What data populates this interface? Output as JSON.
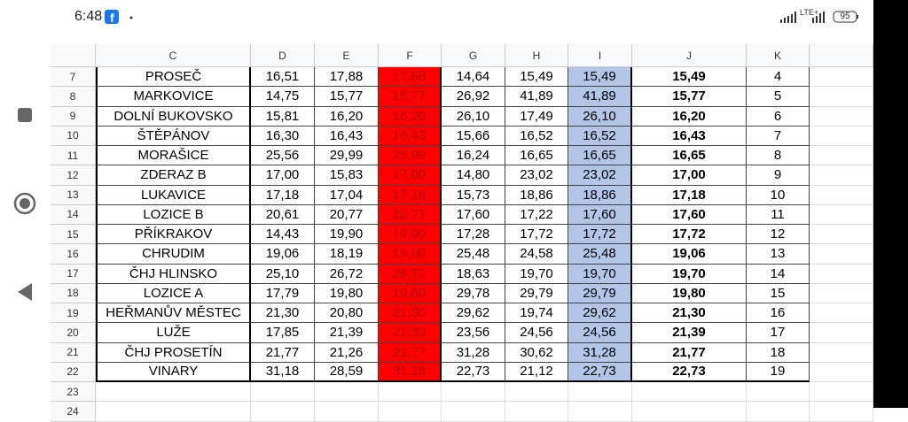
{
  "status_bar": {
    "time": "6:48",
    "network": "LTE+",
    "battery": "95"
  },
  "table": {
    "columns": [
      "C",
      "D",
      "E",
      "F",
      "G",
      "H",
      "I",
      "J",
      "K"
    ],
    "rows": [
      {
        "row": "7",
        "cells": [
          "PROSEČ",
          "16,51",
          "17,88",
          "17,88",
          "14,64",
          "15,49",
          "15,49",
          "15,49",
          "4"
        ]
      },
      {
        "row": "8",
        "cells": [
          "MARKOVICE",
          "14,75",
          "15,77",
          "15,77",
          "26,92",
          "41,89",
          "41,89",
          "15,77",
          "5"
        ]
      },
      {
        "row": "9",
        "cells": [
          "DOLNÍ BUKOVSKO",
          "15,81",
          "16,20",
          "16,20",
          "26,10",
          "17,49",
          "26,10",
          "16,20",
          "6"
        ]
      },
      {
        "row": "10",
        "cells": [
          "ŠTĚPÁNOV",
          "16,30",
          "16,43",
          "16,43",
          "15,66",
          "16,52",
          "16,52",
          "16,43",
          "7"
        ]
      },
      {
        "row": "11",
        "cells": [
          "MORAŠICE",
          "25,56",
          "29,99",
          "29,99",
          "16,24",
          "16,65",
          "16,65",
          "16,65",
          "8"
        ]
      },
      {
        "row": "12",
        "cells": [
          "ZDERAZ B",
          "17,00",
          "15,83",
          "17,00",
          "14,80",
          "23,02",
          "23,02",
          "17,00",
          "9"
        ]
      },
      {
        "row": "13",
        "cells": [
          "LUKAVICE",
          "17,18",
          "17,04",
          "17,18",
          "15,73",
          "18,86",
          "18,86",
          "17,18",
          "10"
        ]
      },
      {
        "row": "14",
        "cells": [
          "LOZICE B",
          "20,61",
          "20,77",
          "20,77",
          "17,60",
          "17,22",
          "17,60",
          "17,60",
          "11"
        ]
      },
      {
        "row": "15",
        "cells": [
          "PŘÍKRAKOV",
          "14,43",
          "19,90",
          "19,90",
          "17,28",
          "17,72",
          "17,72",
          "17,72",
          "12"
        ]
      },
      {
        "row": "16",
        "cells": [
          "CHRUDIM",
          "19,06",
          "18,19",
          "19,06",
          "25,48",
          "24,58",
          "25,48",
          "19,06",
          "13"
        ]
      },
      {
        "row": "17",
        "cells": [
          "ČHJ HLINSKO",
          "25,10",
          "26,72",
          "26,72",
          "18,63",
          "19,70",
          "19,70",
          "19,70",
          "14"
        ]
      },
      {
        "row": "18",
        "cells": [
          "LOZICE A",
          "17,79",
          "19,80",
          "19,80",
          "29,78",
          "29,79",
          "29,79",
          "19,80",
          "15"
        ]
      },
      {
        "row": "19",
        "cells": [
          "HEŘMANŮV MĚSTEC",
          "21,30",
          "20,80",
          "21,30",
          "29,62",
          "19,74",
          "29,62",
          "21,30",
          "16"
        ]
      },
      {
        "row": "20",
        "cells": [
          "LUŽE",
          "17,85",
          "21,39",
          "21,39",
          "23,56",
          "24,56",
          "24,56",
          "21,39",
          "17"
        ]
      },
      {
        "row": "21",
        "cells": [
          "ČHJ PROSETÍN",
          "21,77",
          "21,26",
          "21,77",
          "31,28",
          "30,62",
          "31,28",
          "21,77",
          "18"
        ]
      },
      {
        "row": "22",
        "cells": [
          "VINARY",
          "31,18",
          "28,59",
          "31,18",
          "22,73",
          "21,12",
          "22,73",
          "22,73",
          "19"
        ]
      },
      {
        "row": "23",
        "cells": []
      },
      {
        "row": "24",
        "cells": []
      }
    ]
  }
}
